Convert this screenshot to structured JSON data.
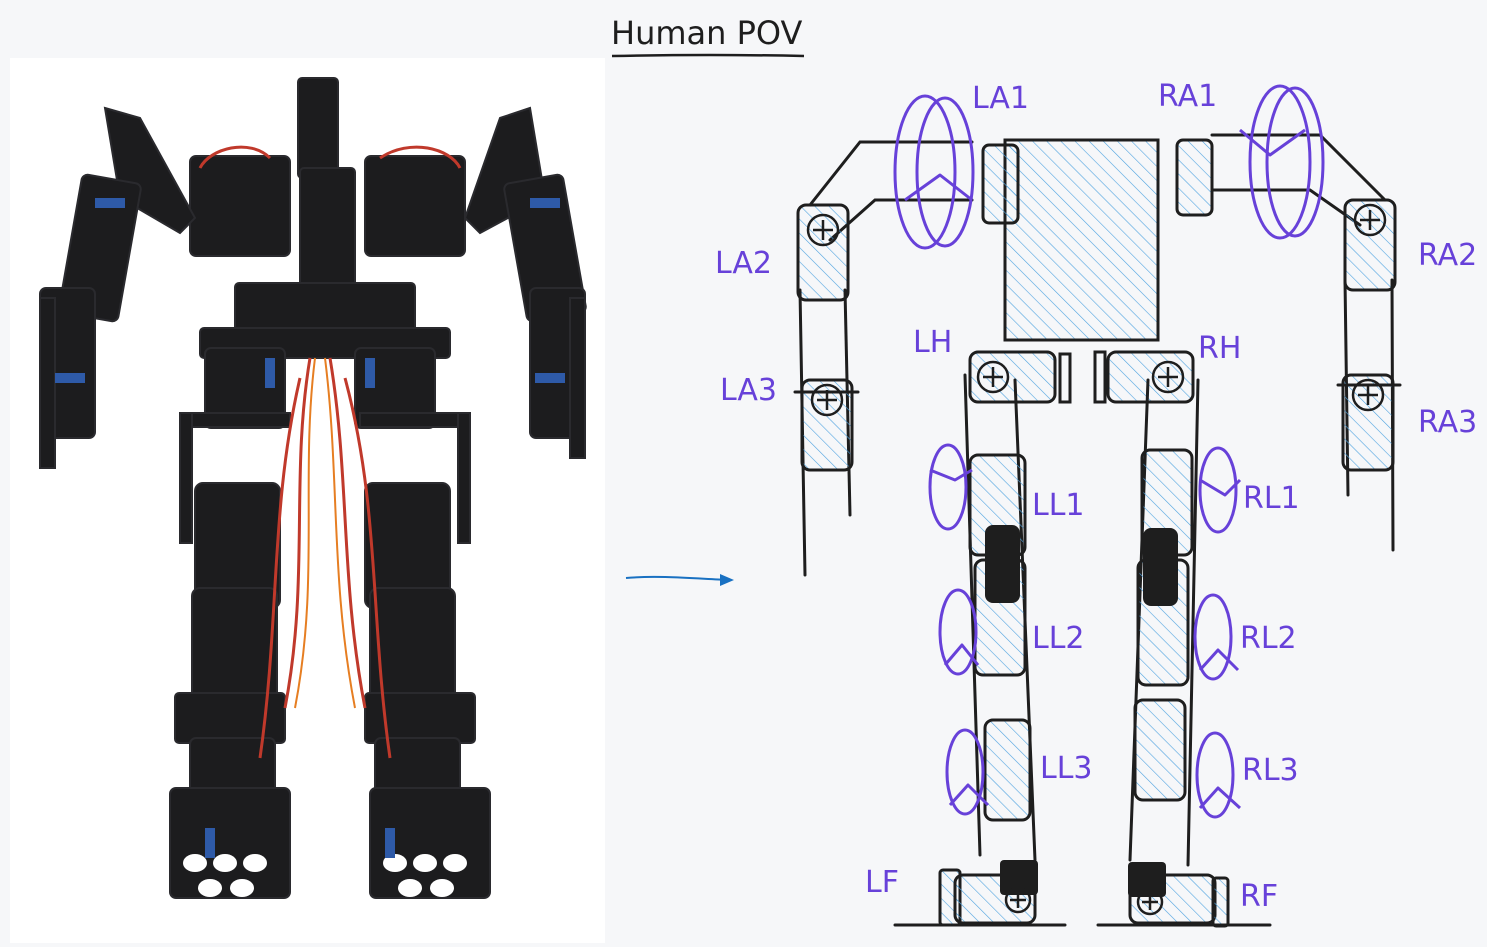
{
  "title": "Human POV",
  "colors": {
    "ink": "#1e1e1e",
    "label": "#6741d9",
    "hatch": "#4fa3e0",
    "arrow": "#1971c2"
  },
  "joints": {
    "la1": "LA1",
    "ra1": "RA1",
    "la2": "LA2",
    "ra2": "RA2",
    "la3": "LA3",
    "ra3": "RA3",
    "lh": "LH",
    "rh": "RH",
    "ll1": "LL1",
    "rl1": "RL1",
    "ll2": "LL2",
    "rl2": "RL2",
    "ll3": "LL3",
    "rl3": "RL3",
    "lf": "LF",
    "rf": "RF"
  }
}
